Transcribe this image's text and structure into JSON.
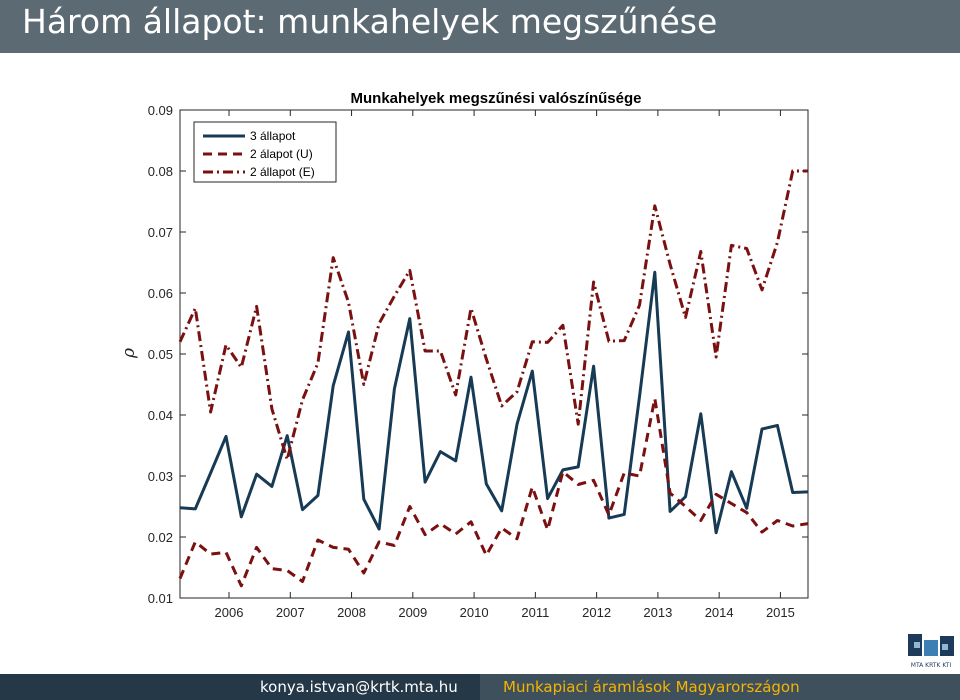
{
  "slide": {
    "title": "Három állapot: munkahelyek megszűnése"
  },
  "footer": {
    "email": "konya.istvan@krtk.mta.hu",
    "talk_title": "Munkapiaci áramlások Magyarországon"
  },
  "logo": {
    "text": "MTA KRTK KTI",
    "colors": [
      "#1e3a5a",
      "#3d7fb5",
      "#8fb8d8"
    ]
  },
  "colors": {
    "title_bar": "#5b6a73",
    "footer_left": "#243847",
    "footer_right": "#3f505d",
    "footer_accent": "#f4b400"
  },
  "chart_data": {
    "type": "line",
    "title": "Munkahelyek megszűnési valószínűsége",
    "xlabel": "",
    "ylabel": "ρ",
    "xlim": [
      2005.2,
      2015.45
    ],
    "ylim": [
      0.01,
      0.09
    ],
    "yticks": [
      0.01,
      0.02,
      0.03,
      0.04,
      0.05,
      0.06,
      0.07,
      0.08,
      0.09
    ],
    "xticks": [
      2006,
      2007,
      2008,
      2009,
      2010,
      2011,
      2012,
      2013,
      2014,
      2015
    ],
    "grid": false,
    "legend_position": "top-left",
    "x": [
      2005.2,
      2005.45,
      2005.7,
      2005.95,
      2006.2,
      2006.45,
      2006.7,
      2006.95,
      2007.2,
      2007.45,
      2007.7,
      2007.95,
      2008.2,
      2008.45,
      2008.7,
      2008.95,
      2009.2,
      2009.45,
      2009.7,
      2009.95,
      2010.2,
      2010.45,
      2010.7,
      2010.95,
      2011.2,
      2011.45,
      2011.7,
      2011.95,
      2012.2,
      2012.45,
      2012.7,
      2012.95,
      2013.2,
      2013.45,
      2013.7,
      2013.95,
      2014.2,
      2014.45,
      2014.7,
      2014.95,
      2015.2,
      2015.45
    ],
    "series": [
      {
        "name": "3 állapot",
        "style": "solid",
        "color": "#173a55",
        "values": [
          0.0248,
          0.0246,
          0.0305,
          0.0365,
          0.0233,
          0.0303,
          0.0283,
          0.0366,
          0.0245,
          0.0268,
          0.0448,
          0.0536,
          0.0262,
          0.0213,
          0.0443,
          0.0558,
          0.029,
          0.034,
          0.0325,
          0.0462,
          0.0287,
          0.0243,
          0.0385,
          0.0472,
          0.0263,
          0.031,
          0.0315,
          0.048,
          0.0231,
          0.0237,
          0.043,
          0.0634,
          0.0242,
          0.0266,
          0.0402,
          0.0207,
          0.0307,
          0.0247,
          0.0377,
          0.0383,
          0.0273,
          0.0274
        ]
      },
      {
        "name": "2 álapot (U)",
        "style": "dashed",
        "color": "#7a1010",
        "values": [
          0.0132,
          0.0192,
          0.0172,
          0.0175,
          0.012,
          0.0183,
          0.0148,
          0.0145,
          0.0127,
          0.0195,
          0.0183,
          0.018,
          0.0141,
          0.0192,
          0.0186,
          0.025,
          0.0204,
          0.0222,
          0.0205,
          0.0225,
          0.017,
          0.0215,
          0.0197,
          0.0282,
          0.0212,
          0.0307,
          0.0286,
          0.0293,
          0.0236,
          0.0305,
          0.03,
          0.0427,
          0.0272,
          0.025,
          0.0227,
          0.027,
          0.0255,
          0.024,
          0.0208,
          0.0227,
          0.0218,
          0.0222
        ]
      },
      {
        "name": "2 állapot (E)",
        "style": "dashdot",
        "color": "#7a1010",
        "values": [
          0.052,
          0.0575,
          0.0405,
          0.0515,
          0.0478,
          0.0578,
          0.041,
          0.0327,
          0.0425,
          0.0485,
          0.0658,
          0.0585,
          0.045,
          0.055,
          0.0595,
          0.0637,
          0.0505,
          0.0505,
          0.0433,
          0.0575,
          0.0492,
          0.0415,
          0.0438,
          0.052,
          0.0519,
          0.0547,
          0.0385,
          0.0618,
          0.0521,
          0.0522,
          0.058,
          0.0743,
          0.0647,
          0.056,
          0.0668,
          0.0495,
          0.0678,
          0.0673,
          0.0605,
          0.0683,
          0.08,
          0.08
        ]
      }
    ]
  }
}
